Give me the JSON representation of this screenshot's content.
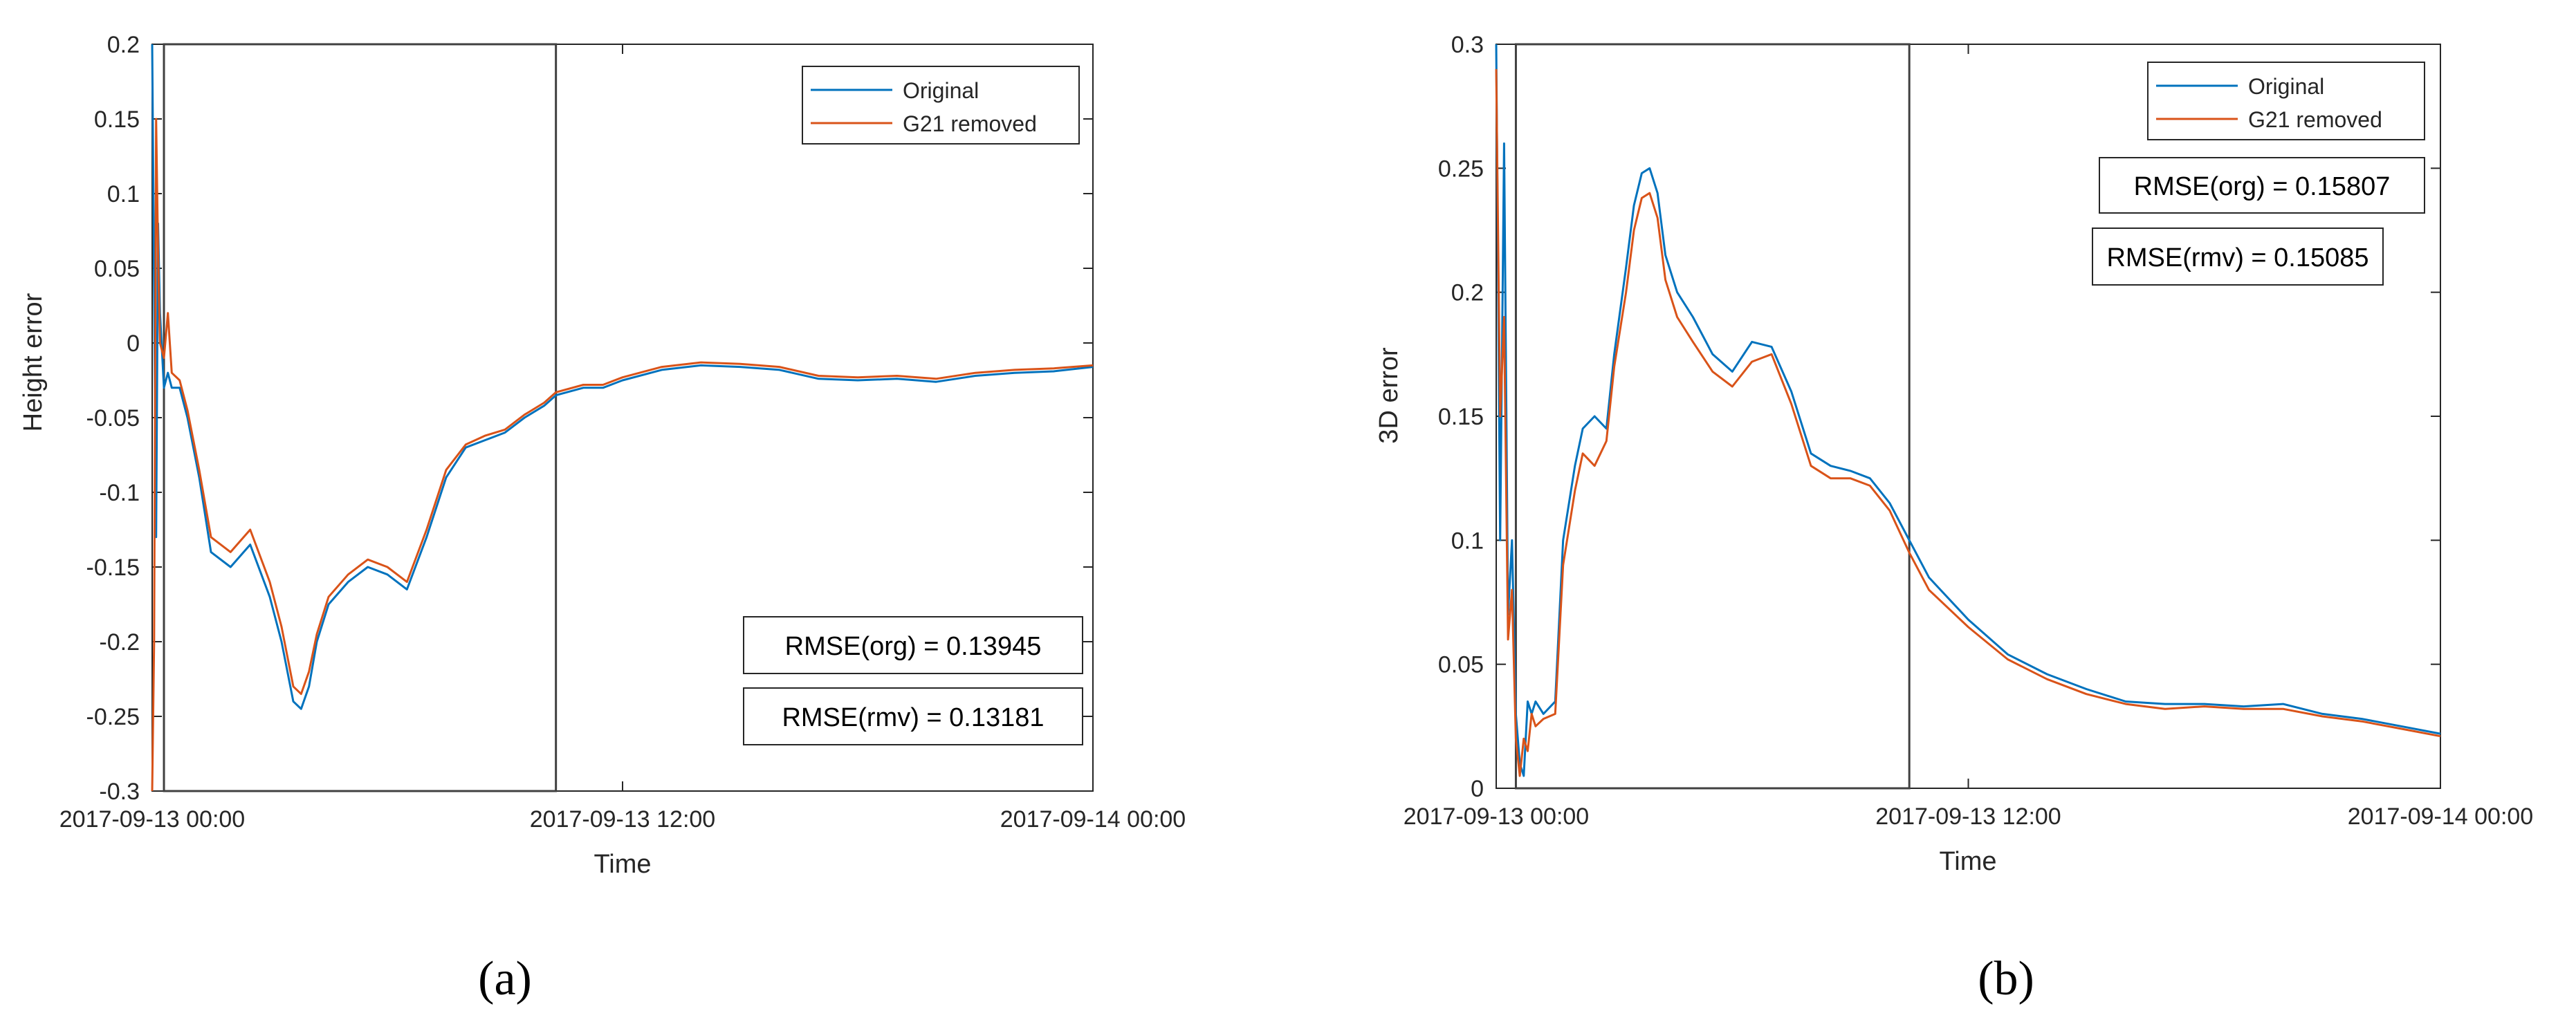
{
  "colors": {
    "original": "#0072BD",
    "removed": "#D95319",
    "axis": "#262626",
    "box": "#262626"
  },
  "chart_data": [
    {
      "type": "line",
      "panel_label": "(a)",
      "xlabel": "Time",
      "ylabel": "Height error",
      "xlim_hours": [
        0,
        24
      ],
      "ylim": [
        -0.3,
        0.2
      ],
      "yticks": [
        -0.3,
        -0.25,
        -0.2,
        -0.15,
        -0.1,
        -0.05,
        0,
        0.05,
        0.1,
        0.15,
        0.2
      ],
      "ytick_labels": [
        "-0.3",
        "-0.25",
        "-0.2",
        "-0.15",
        "-0.1",
        "-0.05",
        "0",
        "0.05",
        "0.1",
        "0.15",
        "0.2"
      ],
      "xticks_hours": [
        0,
        12,
        24
      ],
      "xtick_labels": [
        "2017-09-13 00:00",
        "2017-09-13 12:00",
        "2017-09-14 00:00"
      ],
      "legend_position": "top-right",
      "highlight_window_hours": [
        0.3,
        10.3
      ],
      "annotations": [
        "RMSE(org) = 0.13945",
        "RMSE(rmv) = 0.13181"
      ],
      "series": [
        {
          "name": "Original",
          "x": [
            0,
            0.1,
            0.15,
            0.2,
            0.3,
            0.4,
            0.5,
            0.7,
            0.9,
            1.2,
            1.5,
            2.0,
            2.5,
            3.0,
            3.3,
            3.6,
            3.8,
            4.0,
            4.2,
            4.5,
            5.0,
            5.5,
            6.0,
            6.5,
            7.0,
            7.5,
            8.0,
            8.5,
            9.0,
            9.5,
            10.0,
            10.3,
            11.0,
            11.5,
            12.0,
            13.0,
            14.0,
            15.0,
            16.0,
            17.0,
            18.0,
            19.0,
            20.0,
            21.0,
            22.0,
            23.0,
            24.0
          ],
          "y": [
            0.2,
            -0.13,
            0.08,
            0.02,
            -0.03,
            -0.02,
            -0.03,
            -0.03,
            -0.05,
            -0.09,
            -0.14,
            -0.15,
            -0.135,
            -0.17,
            -0.2,
            -0.24,
            -0.245,
            -0.23,
            -0.2,
            -0.175,
            -0.16,
            -0.15,
            -0.155,
            -0.165,
            -0.13,
            -0.09,
            -0.07,
            -0.065,
            -0.06,
            -0.05,
            -0.042,
            -0.035,
            -0.03,
            -0.03,
            -0.025,
            -0.018,
            -0.015,
            -0.016,
            -0.018,
            -0.024,
            -0.025,
            -0.024,
            -0.026,
            -0.022,
            -0.02,
            -0.019,
            -0.016
          ]
        },
        {
          "name": "G21 removed",
          "x": [
            0,
            0.05,
            0.1,
            0.15,
            0.2,
            0.3,
            0.4,
            0.5,
            0.7,
            0.9,
            1.2,
            1.5,
            2.0,
            2.5,
            3.0,
            3.3,
            3.6,
            3.8,
            4.0,
            4.2,
            4.5,
            5.0,
            5.5,
            6.0,
            6.5,
            7.0,
            7.5,
            8.0,
            8.5,
            9.0,
            9.5,
            10.0,
            10.3,
            11.0,
            11.5,
            12.0,
            13.0,
            14.0,
            15.0,
            16.0,
            17.0,
            18.0,
            19.0,
            20.0,
            21.0,
            22.0,
            23.0,
            24.0
          ],
          "y": [
            -0.3,
            -0.2,
            0.15,
            0.06,
            0.0,
            -0.01,
            0.02,
            -0.02,
            -0.025,
            -0.045,
            -0.085,
            -0.13,
            -0.14,
            -0.125,
            -0.16,
            -0.19,
            -0.23,
            -0.235,
            -0.22,
            -0.195,
            -0.17,
            -0.155,
            -0.145,
            -0.15,
            -0.16,
            -0.125,
            -0.085,
            -0.068,
            -0.062,
            -0.058,
            -0.048,
            -0.04,
            -0.033,
            -0.028,
            -0.028,
            -0.023,
            -0.016,
            -0.013,
            -0.014,
            -0.016,
            -0.022,
            -0.023,
            -0.022,
            -0.024,
            -0.02,
            -0.018,
            -0.017,
            -0.015
          ]
        }
      ]
    },
    {
      "type": "line",
      "panel_label": "(b)",
      "xlabel": "Time",
      "ylabel": "3D error",
      "xlim_hours": [
        0,
        24
      ],
      "ylim": [
        0,
        0.3
      ],
      "yticks": [
        0,
        0.05,
        0.1,
        0.15,
        0.2,
        0.25,
        0.3
      ],
      "ytick_labels": [
        "0",
        "0.05",
        "0.1",
        "0.15",
        "0.2",
        "0.25",
        "0.3"
      ],
      "xticks_hours": [
        0,
        12,
        24
      ],
      "xtick_labels": [
        "2017-09-13 00:00",
        "2017-09-13 12:00",
        "2017-09-14 00:00"
      ],
      "legend_position": "top-right",
      "highlight_window_hours": [
        0.5,
        10.5
      ],
      "annotations": [
        "RMSE(org) = 0.15807",
        "RMSE(rmv) = 0.15085"
      ],
      "series": [
        {
          "name": "Original",
          "x": [
            0,
            0.1,
            0.2,
            0.3,
            0.4,
            0.5,
            0.6,
            0.7,
            0.8,
            0.9,
            1.0,
            1.2,
            1.5,
            1.7,
            2.0,
            2.2,
            2.5,
            2.8,
            3.0,
            3.3,
            3.5,
            3.7,
            3.9,
            4.1,
            4.3,
            4.6,
            5.0,
            5.5,
            6.0,
            6.5,
            7.0,
            7.5,
            8.0,
            8.5,
            9.0,
            9.5,
            10.0,
            10.5,
            11.0,
            12.0,
            13.0,
            14.0,
            15.0,
            16.0,
            17.0,
            18.0,
            19.0,
            20.0,
            21.0,
            22.0,
            23.0,
            24.0
          ],
          "y": [
            0.3,
            0.1,
            0.26,
            0.07,
            0.1,
            0.03,
            0.01,
            0.005,
            0.035,
            0.03,
            0.035,
            0.03,
            0.035,
            0.1,
            0.13,
            0.145,
            0.15,
            0.145,
            0.175,
            0.21,
            0.235,
            0.248,
            0.25,
            0.24,
            0.215,
            0.2,
            0.19,
            0.175,
            0.168,
            0.18,
            0.178,
            0.16,
            0.135,
            0.13,
            0.128,
            0.125,
            0.115,
            0.1,
            0.085,
            0.068,
            0.054,
            0.046,
            0.04,
            0.035,
            0.034,
            0.034,
            0.033,
            0.034,
            0.03,
            0.028,
            0.025,
            0.022
          ]
        },
        {
          "name": "G21 removed",
          "x": [
            0,
            0.1,
            0.2,
            0.3,
            0.4,
            0.5,
            0.6,
            0.7,
            0.8,
            0.9,
            1.0,
            1.2,
            1.5,
            1.7,
            2.0,
            2.2,
            2.5,
            2.8,
            3.0,
            3.3,
            3.5,
            3.7,
            3.9,
            4.1,
            4.3,
            4.6,
            5.0,
            5.5,
            6.0,
            6.5,
            7.0,
            7.5,
            8.0,
            8.5,
            9.0,
            9.5,
            10.0,
            10.5,
            11.0,
            12.0,
            13.0,
            14.0,
            15.0,
            16.0,
            17.0,
            18.0,
            19.0,
            20.0,
            21.0,
            22.0,
            23.0,
            24.0
          ],
          "y": [
            0.29,
            0.15,
            0.19,
            0.06,
            0.08,
            0.02,
            0.005,
            0.02,
            0.015,
            0.03,
            0.025,
            0.028,
            0.03,
            0.09,
            0.12,
            0.135,
            0.13,
            0.14,
            0.17,
            0.2,
            0.225,
            0.238,
            0.24,
            0.23,
            0.205,
            0.19,
            0.18,
            0.168,
            0.162,
            0.172,
            0.175,
            0.155,
            0.13,
            0.125,
            0.125,
            0.122,
            0.112,
            0.095,
            0.08,
            0.065,
            0.052,
            0.044,
            0.038,
            0.034,
            0.032,
            0.033,
            0.032,
            0.032,
            0.029,
            0.027,
            0.024,
            0.021
          ]
        }
      ]
    }
  ]
}
